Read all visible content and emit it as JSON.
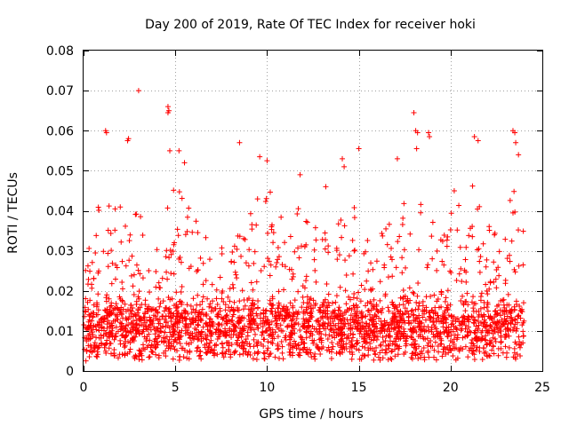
{
  "chart_data": {
    "type": "scatter",
    "title": "Day 200 of 2019, Rate Of TEC Index for receiver hoki",
    "xlabel": "GPS time / hours",
    "ylabel": "ROTI / TECUs",
    "xlim": [
      0,
      25
    ],
    "ylim": [
      0,
      0.08
    ],
    "x_ticks": [
      "0",
      "5",
      "10",
      "15",
      "20",
      "25"
    ],
    "y_ticks": [
      "0",
      "0.01",
      "0.02",
      "0.03",
      "0.04",
      "0.05",
      "0.06",
      "0.07",
      "0.08"
    ],
    "grid": true,
    "legend": "none",
    "marker": "plus",
    "series_color": "#ff0000",
    "data_extent": {
      "x_min": 0.0,
      "x_max": 24.0
    },
    "envelope": {
      "description_hours": [
        0,
        0.5,
        1,
        1.5,
        2,
        2.5,
        3,
        3.5,
        4,
        4.5,
        5,
        5.5,
        6,
        6.5,
        7,
        7.5,
        8,
        8.5,
        9,
        9.5,
        10,
        10.5,
        11,
        11.5,
        12,
        12.5,
        13,
        13.5,
        14,
        14.5,
        15,
        15.5,
        16,
        16.5,
        17,
        17.5,
        18,
        18.5,
        19,
        19.5,
        20,
        20.5,
        21,
        21.5,
        22,
        22.5,
        23,
        23.5,
        24
      ],
      "typical_peak": [
        0.028,
        0.033,
        0.045,
        0.04,
        0.042,
        0.035,
        0.043,
        0.035,
        0.033,
        0.04,
        0.047,
        0.045,
        0.038,
        0.035,
        0.033,
        0.032,
        0.03,
        0.035,
        0.04,
        0.045,
        0.047,
        0.04,
        0.038,
        0.04,
        0.04,
        0.035,
        0.038,
        0.036,
        0.04,
        0.036,
        0.045,
        0.035,
        0.033,
        0.035,
        0.038,
        0.042,
        0.045,
        0.04,
        0.038,
        0.035,
        0.04,
        0.045,
        0.05,
        0.042,
        0.038,
        0.035,
        0.04,
        0.048,
        0.035
      ]
    },
    "outliers": [
      {
        "x": 1.2,
        "y": 0.06
      },
      {
        "x": 1.25,
        "y": 0.0595
      },
      {
        "x": 2.4,
        "y": 0.0575
      },
      {
        "x": 2.45,
        "y": 0.058
      },
      {
        "x": 3.0,
        "y": 0.07
      },
      {
        "x": 4.6,
        "y": 0.066
      },
      {
        "x": 4.65,
        "y": 0.065
      },
      {
        "x": 4.6,
        "y": 0.0645
      },
      {
        "x": 4.7,
        "y": 0.055
      },
      {
        "x": 5.2,
        "y": 0.055
      },
      {
        "x": 8.5,
        "y": 0.057
      },
      {
        "x": 15.0,
        "y": 0.0555
      },
      {
        "x": 18.0,
        "y": 0.0645
      },
      {
        "x": 18.1,
        "y": 0.06
      },
      {
        "x": 18.2,
        "y": 0.0595
      },
      {
        "x": 18.15,
        "y": 0.0555
      },
      {
        "x": 18.8,
        "y": 0.0595
      },
      {
        "x": 18.85,
        "y": 0.0585
      },
      {
        "x": 21.3,
        "y": 0.0585
      },
      {
        "x": 21.5,
        "y": 0.0575
      },
      {
        "x": 23.4,
        "y": 0.06
      },
      {
        "x": 23.5,
        "y": 0.0595
      },
      {
        "x": 23.55,
        "y": 0.057
      },
      {
        "x": 23.7,
        "y": 0.054
      },
      {
        "x": 10.0,
        "y": 0.0525
      },
      {
        "x": 9.6,
        "y": 0.0535
      },
      {
        "x": 5.5,
        "y": 0.052
      },
      {
        "x": 11.8,
        "y": 0.049
      },
      {
        "x": 13.2,
        "y": 0.046
      },
      {
        "x": 14.1,
        "y": 0.053
      },
      {
        "x": 14.2,
        "y": 0.051
      },
      {
        "x": 17.1,
        "y": 0.053
      },
      {
        "x": 20.2,
        "y": 0.045
      }
    ]
  }
}
